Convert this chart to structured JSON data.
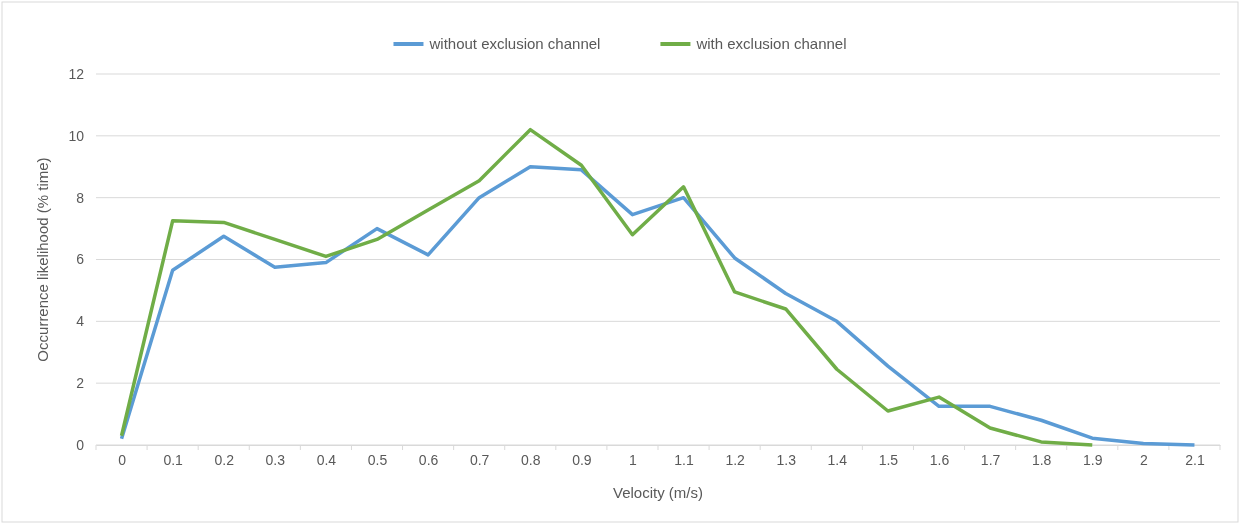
{
  "chart_data": {
    "type": "line",
    "xlabel": "Velocity (m/s)",
    "ylabel": "Occurrence likelihood (% time)",
    "categories": [
      "0",
      "0.1",
      "0.2",
      "0.3",
      "0.4",
      "0.5",
      "0.6",
      "0.7",
      "0.8",
      "0.9",
      "1",
      "1.1",
      "1.2",
      "1.3",
      "1.4",
      "1.5",
      "1.6",
      "1.7",
      "1.8",
      "1.9",
      "2",
      "2.1"
    ],
    "series": [
      {
        "name": "without exclusion channel",
        "color": "#5b9bd5",
        "values": [
          0.2,
          5.65,
          6.75,
          5.75,
          5.9,
          7.0,
          6.15,
          8.0,
          9.0,
          8.9,
          7.45,
          8.0,
          6.05,
          4.9,
          4.0,
          2.55,
          1.25,
          1.25,
          0.8,
          0.22,
          0.05,
          0
        ]
      },
      {
        "name": "with exclusion channel",
        "color": "#70ad47",
        "values": [
          0.3,
          7.25,
          7.2,
          6.65,
          6.1,
          6.65,
          7.6,
          8.55,
          10.2,
          9.05,
          6.8,
          8.35,
          4.95,
          4.4,
          2.45,
          1.1,
          1.55,
          0.55,
          0.1,
          0,
          null,
          null
        ]
      }
    ],
    "ylim": [
      0,
      12
    ],
    "yticks": [
      0,
      2,
      4,
      6,
      8,
      10,
      12
    ],
    "grid": "y",
    "legend": "top",
    "marker": "none",
    "line_style": "solid"
  }
}
